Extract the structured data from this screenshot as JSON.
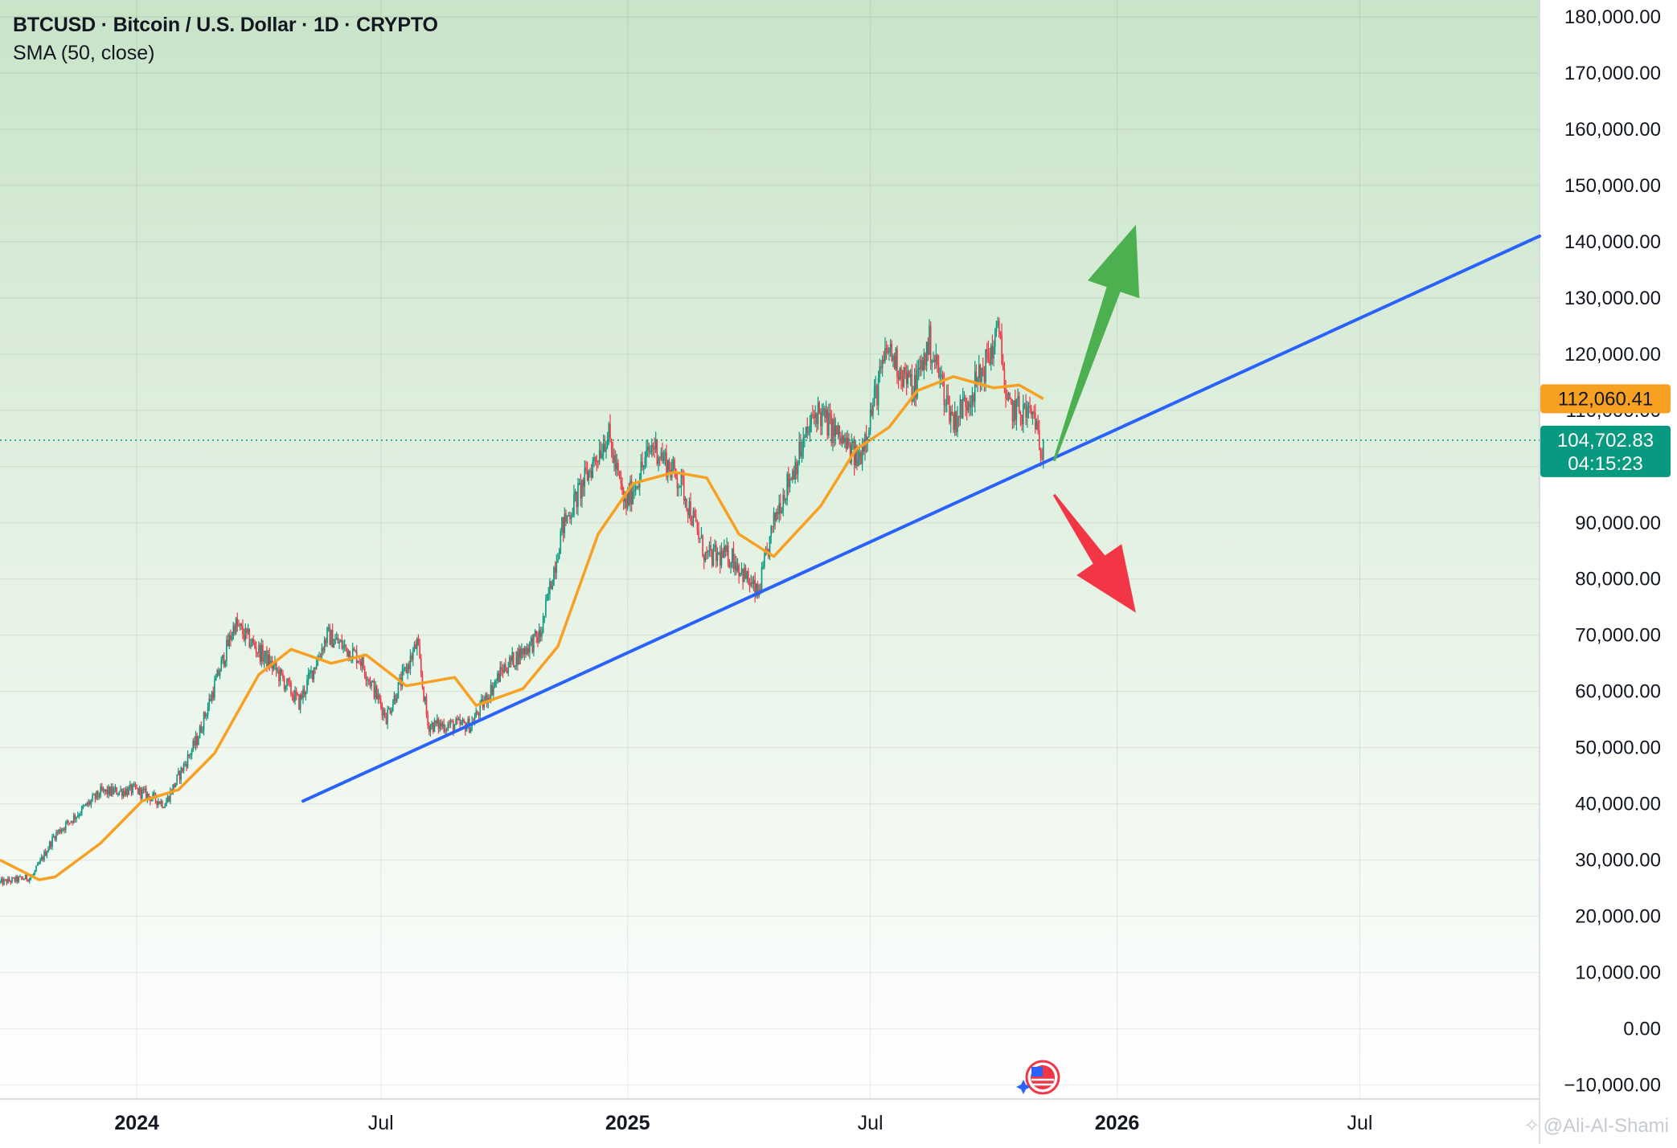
{
  "header": {
    "title": "BTCUSD · Bitcoin / U.S. Dollar · 1D · CRYPTO",
    "indicator": "SMA (50, close)"
  },
  "watermark": {
    "text": "@Ali-Al-Shami",
    "icon": "tradingview-icon"
  },
  "badges": {
    "sma": {
      "value": "112,060.41",
      "color": "#f7a021"
    },
    "last": {
      "value": "104,702.83",
      "countdown": "04:15:23",
      "color": "#089981"
    }
  },
  "colors": {
    "up": "#089981",
    "down": "#f23645",
    "sma": "#f7a021",
    "trendline": "#2962ff",
    "arrow_up": "#4caf50",
    "arrow_down": "#f23645",
    "background_top": "#c9e4c8",
    "background_bottom": "#ffffff"
  },
  "chart_data": {
    "type": "candlestick",
    "symbol": "BTCUSD",
    "interval": "1D",
    "x_tick_labels": [
      "2024",
      "Jul",
      "2025",
      "Jul",
      "2026",
      "Jul"
    ],
    "x_ticks": [
      "2024-01-01",
      "2024-07-01",
      "2025-01-01",
      "2025-07-01",
      "2026-01-01",
      "2026-07-01"
    ],
    "y_tick_labels": [
      "180,000.00",
      "170,000.00",
      "160,000.00",
      "150,000.00",
      "140,000.00",
      "130,000.00",
      "120,000.00",
      "110,000.00",
      "100,000.00",
      "90,000.00",
      "80,000.00",
      "70,000.00",
      "60,000.00",
      "50,000.00",
      "40,000.00",
      "30,000.00",
      "20,000.00",
      "10,000.00",
      "0.00",
      "−10,000.00"
    ],
    "y_ticks": [
      180000,
      170000,
      160000,
      150000,
      140000,
      130000,
      120000,
      110000,
      100000,
      90000,
      80000,
      70000,
      60000,
      50000,
      40000,
      30000,
      20000,
      10000,
      0,
      -10000
    ],
    "xlim": [
      "2023-09-21",
      "2026-11-12"
    ],
    "ylim": [
      -12500,
      183000
    ],
    "grid": true,
    "price_anchors": [
      [
        "2023-09-21",
        26000
      ],
      [
        "2023-10-15",
        27000
      ],
      [
        "2023-11-01",
        34500
      ],
      [
        "2023-12-05",
        42000
      ],
      [
        "2023-12-31",
        42500
      ],
      [
        "2024-01-22",
        40000
      ],
      [
        "2024-02-15",
        51500
      ],
      [
        "2024-03-14",
        72000
      ],
      [
        "2024-04-13",
        64000
      ],
      [
        "2024-05-01",
        58000
      ],
      [
        "2024-05-22",
        70000
      ],
      [
        "2024-06-15",
        66000
      ],
      [
        "2024-07-05",
        55500
      ],
      [
        "2024-07-28",
        68500
      ],
      [
        "2024-08-05",
        54000
      ],
      [
        "2024-09-06",
        54000
      ],
      [
        "2024-09-30",
        64000
      ],
      [
        "2024-10-28",
        70000
      ],
      [
        "2024-11-13",
        89000
      ],
      [
        "2024-12-05",
        100000
      ],
      [
        "2024-12-17",
        106000
      ],
      [
        "2024-12-30",
        93000
      ],
      [
        "2025-01-20",
        104000
      ],
      [
        "2025-02-10",
        97000
      ],
      [
        "2025-02-28",
        84000
      ],
      [
        "2025-03-20",
        84000
      ],
      [
        "2025-04-08",
        77000
      ],
      [
        "2025-04-22",
        92000
      ],
      [
        "2025-05-22",
        110000
      ],
      [
        "2025-06-22",
        101000
      ],
      [
        "2025-07-14",
        121000
      ],
      [
        "2025-08-02",
        113500
      ],
      [
        "2025-08-14",
        122000
      ],
      [
        "2025-09-01",
        108000
      ],
      [
        "2025-09-20",
        115500
      ],
      [
        "2025-10-06",
        124500
      ],
      [
        "2025-10-10",
        110500
      ],
      [
        "2025-10-20",
        110000
      ],
      [
        "2025-11-01",
        109000
      ],
      [
        "2025-11-04",
        101500
      ],
      [
        "2025-11-07",
        104702.83
      ]
    ],
    "sma50_anchors": [
      [
        "2023-09-21",
        30000
      ],
      [
        "2023-10-20",
        26500
      ],
      [
        "2023-11-01",
        27000
      ],
      [
        "2023-12-05",
        33000
      ],
      [
        "2024-01-05",
        40500
      ],
      [
        "2024-02-01",
        42500
      ],
      [
        "2024-02-28",
        49000
      ],
      [
        "2024-04-01",
        63000
      ],
      [
        "2024-04-25",
        67500
      ],
      [
        "2024-05-25",
        65000
      ],
      [
        "2024-06-20",
        66500
      ],
      [
        "2024-07-20",
        61000
      ],
      [
        "2024-08-25",
        62500
      ],
      [
        "2024-09-10",
        57500
      ],
      [
        "2024-10-15",
        60500
      ],
      [
        "2024-11-10",
        68000
      ],
      [
        "2024-12-10",
        88000
      ],
      [
        "2025-01-05",
        97000
      ],
      [
        "2025-02-05",
        99000
      ],
      [
        "2025-03-01",
        98000
      ],
      [
        "2025-03-25",
        88000
      ],
      [
        "2025-04-20",
        84000
      ],
      [
        "2025-05-25",
        93000
      ],
      [
        "2025-06-20",
        103000
      ],
      [
        "2025-07-15",
        107000
      ],
      [
        "2025-08-05",
        113500
      ],
      [
        "2025-09-01",
        116000
      ],
      [
        "2025-10-01",
        114000
      ],
      [
        "2025-10-20",
        114500
      ],
      [
        "2025-11-07",
        112060.41
      ]
    ],
    "sma50": {
      "name": "SMA (50, close)",
      "last": 112060.41
    },
    "last_price": 104702.83,
    "countdown": "04:15:23",
    "trendline": {
      "start": [
        "2024-05-04",
        40500
      ],
      "end": [
        "2026-11-12",
        141000
      ]
    },
    "arrows": [
      {
        "direction": "up",
        "from": [
          "2025-11-15",
          101000
        ],
        "to": [
          "2026-01-15",
          143000
        ]
      },
      {
        "direction": "down",
        "from": [
          "2025-11-15",
          95000
        ],
        "to": [
          "2026-01-15",
          74000
        ]
      }
    ]
  }
}
